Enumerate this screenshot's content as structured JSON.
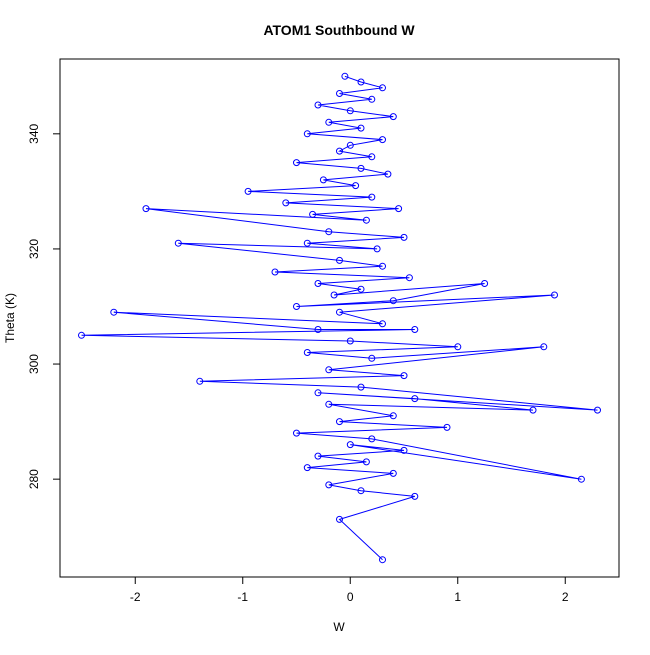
{
  "chart_data": {
    "type": "scatter",
    "title": "ATOM1 Southbound W",
    "xlabel": "W",
    "ylabel": "Theta (K)",
    "xlim": [
      -2.7,
      2.5
    ],
    "ylim": [
      263,
      353
    ],
    "xticks": [
      -2,
      -1,
      0,
      1,
      2
    ],
    "yticks": [
      280,
      300,
      320,
      340
    ],
    "grid": false,
    "legend": "none",
    "markers": "open circles connected by lines",
    "color": "#0000ff",
    "series": [
      {
        "x": [
          -0.05,
          0.1,
          0.3,
          -0.1,
          0.2,
          -0.3,
          0.0,
          0.4,
          -0.2,
          0.1,
          -0.4,
          0.3,
          0.0,
          -0.1,
          0.2,
          -0.5,
          0.1,
          0.35,
          -0.25,
          0.05,
          -0.95,
          0.2,
          -0.6,
          0.45,
          -0.35,
          0.15,
          -1.9,
          -0.2,
          0.5,
          -0.4,
          0.25,
          -1.6,
          -0.1,
          0.3,
          -0.7,
          0.55,
          -0.3,
          0.1,
          -0.15,
          1.25,
          0.4,
          -0.5,
          1.9,
          -0.1,
          0.3,
          -2.2,
          -0.3,
          0.6,
          -2.5,
          0.0,
          1.0,
          -0.4,
          0.2,
          1.8,
          -0.2,
          0.5,
          -1.4,
          0.1,
          2.3,
          -0.3,
          0.6,
          1.7,
          -0.2,
          0.4,
          -0.1,
          0.9,
          -0.5,
          0.2,
          2.15,
          0.0,
          0.5,
          -0.3,
          0.15,
          -0.4,
          0.4,
          -0.2,
          0.1,
          0.6,
          -0.1,
          0.3
        ],
        "y": [
          350,
          349,
          348,
          347,
          346,
          345,
          344,
          343,
          342,
          341,
          340,
          339,
          338,
          337,
          336,
          335,
          334,
          333,
          332,
          331,
          330,
          329,
          328,
          327,
          326,
          325,
          327,
          323,
          322,
          321,
          320,
          321,
          318,
          317,
          316,
          315,
          314,
          313,
          312,
          314,
          311,
          310,
          312,
          309,
          307,
          309,
          306,
          306,
          305,
          304,
          303,
          302,
          301,
          303,
          299,
          298,
          297,
          296,
          292,
          295,
          294,
          292,
          293,
          291,
          290,
          289,
          288,
          287,
          280,
          286,
          285,
          284,
          283,
          282,
          281,
          279,
          278,
          277,
          273,
          266
        ]
      }
    ]
  }
}
